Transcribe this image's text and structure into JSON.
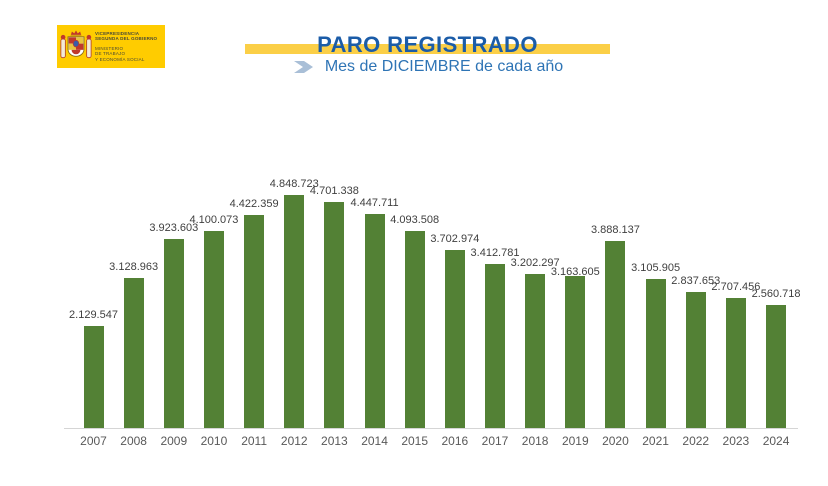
{
  "header": {
    "logo": {
      "authority_line1": "VICEPRESIDENCIA",
      "authority_line2": "SEGUNDA DEL GOBIERNO",
      "ministry_line1": "MINISTERIO",
      "ministry_line2": "DE TRABAJO",
      "ministry_line3": "Y ECONOMÍA SOCIAL"
    },
    "title": "PARO REGISTRADO",
    "subtitle": "Mes de DICIEMBRE de cada año"
  },
  "colors": {
    "bar_green": "#538135",
    "title_blue": "#1B5CA8",
    "subtitle_blue": "#2E74B5",
    "band_yellow": "#FBCF47",
    "logo_yellow": "#FFCC00",
    "chevron_blue": "#A9BFD7",
    "axis_gray": "#D5D5D5",
    "value_label_gray": "#3F3F3F",
    "year_label_gray": "#595959"
  },
  "chart_data": {
    "type": "bar",
    "title": "PARO REGISTRADO",
    "subtitle": "Mes de DICIEMBRE de cada año",
    "categories": [
      "2007",
      "2008",
      "2009",
      "2010",
      "2011",
      "2012",
      "2013",
      "2014",
      "2015",
      "2016",
      "2017",
      "2018",
      "2019",
      "2020",
      "2021",
      "2022",
      "2023",
      "2024"
    ],
    "values": [
      2129547,
      3128963,
      3923603,
      4100073,
      4422359,
      4848723,
      4701338,
      4447711,
      4093508,
      3702974,
      3412781,
      3202297,
      3163605,
      3888137,
      3105905,
      2837653,
      2707456,
      2560718
    ],
    "value_labels": [
      "2.129.547",
      "3.128.963",
      "3.923.603",
      "4.100.073",
      "4.422.359",
      "4.848.723",
      "4.701.338",
      "4.447.711",
      "4.093.508",
      "3.702.974",
      "3.412.781",
      "3.202.297",
      "3.163.605",
      "3.888.137",
      "3.105.905",
      "2.837.653",
      "2.707.456",
      "2.560.718"
    ],
    "xlabel": "",
    "ylabel": "",
    "ylim": [
      0,
      4848723
    ],
    "grid": false,
    "legend": false,
    "bar_color": "#538135"
  }
}
